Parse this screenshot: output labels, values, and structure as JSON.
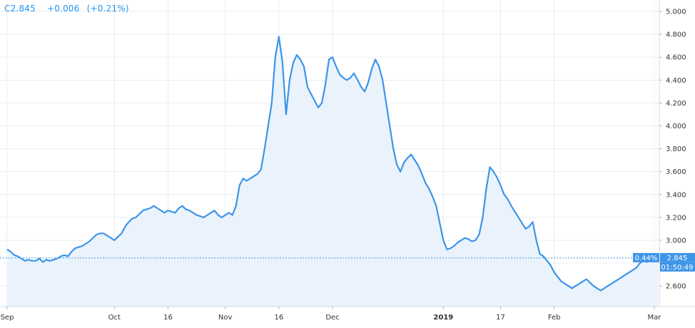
{
  "header": {
    "symbol": "C",
    "price": "2.845",
    "change": "+0.006",
    "change_pct": "(+0.21%)"
  },
  "price_tag": {
    "pct": "0.44%",
    "value": "2.845",
    "countdown": "01:50:49"
  },
  "colors": {
    "line": "#3d95e8",
    "area": "#eaf3fb",
    "grid": "#e9edf1",
    "axis_text": "#333333",
    "tag_bg": "#3d95e8"
  },
  "chart_data": {
    "type": "area",
    "title": "",
    "xlabel": "",
    "ylabel": "",
    "ylim": [
      2.42,
      5.1
    ],
    "y_ticks": [
      "5.000",
      "4.800",
      "4.600",
      "4.400",
      "4.200",
      "4.000",
      "3.800",
      "3.600",
      "3.400",
      "3.200",
      "3.000",
      "2.800",
      "2.600"
    ],
    "x_ticks": [
      {
        "label": "Sep",
        "i": 0,
        "bold": false
      },
      {
        "label": "Oct",
        "i": 30,
        "bold": false
      },
      {
        "label": "16",
        "i": 45,
        "bold": false
      },
      {
        "label": "Nov",
        "i": 61,
        "bold": false
      },
      {
        "label": "16",
        "i": 76,
        "bold": false
      },
      {
        "label": "Dec",
        "i": 91,
        "bold": false
      },
      {
        "label": "2019",
        "i": 122,
        "bold": true
      },
      {
        "label": "17",
        "i": 138,
        "bold": false
      },
      {
        "label": "Feb",
        "i": 153,
        "bold": false
      },
      {
        "label": "Mar",
        "i": 181,
        "bold": false
      }
    ],
    "series": [
      {
        "values": [
          2.92,
          2.9,
          2.87,
          2.86,
          2.84,
          2.82,
          2.83,
          2.82,
          2.82,
          2.84,
          2.81,
          2.83,
          2.82,
          2.83,
          2.84,
          2.86,
          2.87,
          2.86,
          2.9,
          2.93,
          2.94,
          2.95,
          2.97,
          2.99,
          3.02,
          3.05,
          3.06,
          3.06,
          3.04,
          3.02,
          3.0,
          3.03,
          3.06,
          3.12,
          3.16,
          3.19,
          3.2,
          3.23,
          3.26,
          3.27,
          3.28,
          3.3,
          3.28,
          3.26,
          3.24,
          3.26,
          3.25,
          3.24,
          3.28,
          3.3,
          3.27,
          3.26,
          3.24,
          3.22,
          3.21,
          3.2,
          3.22,
          3.24,
          3.26,
          3.22,
          3.2,
          3.22,
          3.24,
          3.22,
          3.3,
          3.48,
          3.54,
          3.52,
          3.54,
          3.56,
          3.58,
          3.62,
          3.8,
          4.0,
          4.2,
          4.6,
          4.78,
          4.56,
          4.1,
          4.4,
          4.55,
          4.62,
          4.58,
          4.52,
          4.34,
          4.28,
          4.22,
          4.16,
          4.2,
          4.36,
          4.58,
          4.6,
          4.52,
          4.45,
          4.42,
          4.4,
          4.42,
          4.46,
          4.4,
          4.34,
          4.3,
          4.38,
          4.5,
          4.58,
          4.52,
          4.4,
          4.2,
          4.0,
          3.8,
          3.66,
          3.6,
          3.68,
          3.72,
          3.75,
          3.7,
          3.65,
          3.58,
          3.5,
          3.45,
          3.38,
          3.3,
          3.15,
          3.0,
          2.92,
          2.93,
          2.95,
          2.98,
          3.0,
          3.02,
          3.01,
          2.99,
          3.0,
          3.05,
          3.2,
          3.45,
          3.64,
          3.6,
          3.55,
          3.48,
          3.4,
          3.36,
          3.3,
          3.25,
          3.2,
          3.15,
          3.1,
          3.12,
          3.16,
          3.0,
          2.88,
          2.86,
          2.82,
          2.78,
          2.72,
          2.68,
          2.64,
          2.62,
          2.6,
          2.58,
          2.6,
          2.62,
          2.64,
          2.66,
          2.63,
          2.6,
          2.58,
          2.56,
          2.58,
          2.6,
          2.62,
          2.64,
          2.66,
          2.68,
          2.7,
          2.72,
          2.74,
          2.76,
          2.8,
          2.82,
          2.81,
          2.83,
          2.84,
          2.845
        ]
      }
    ]
  }
}
